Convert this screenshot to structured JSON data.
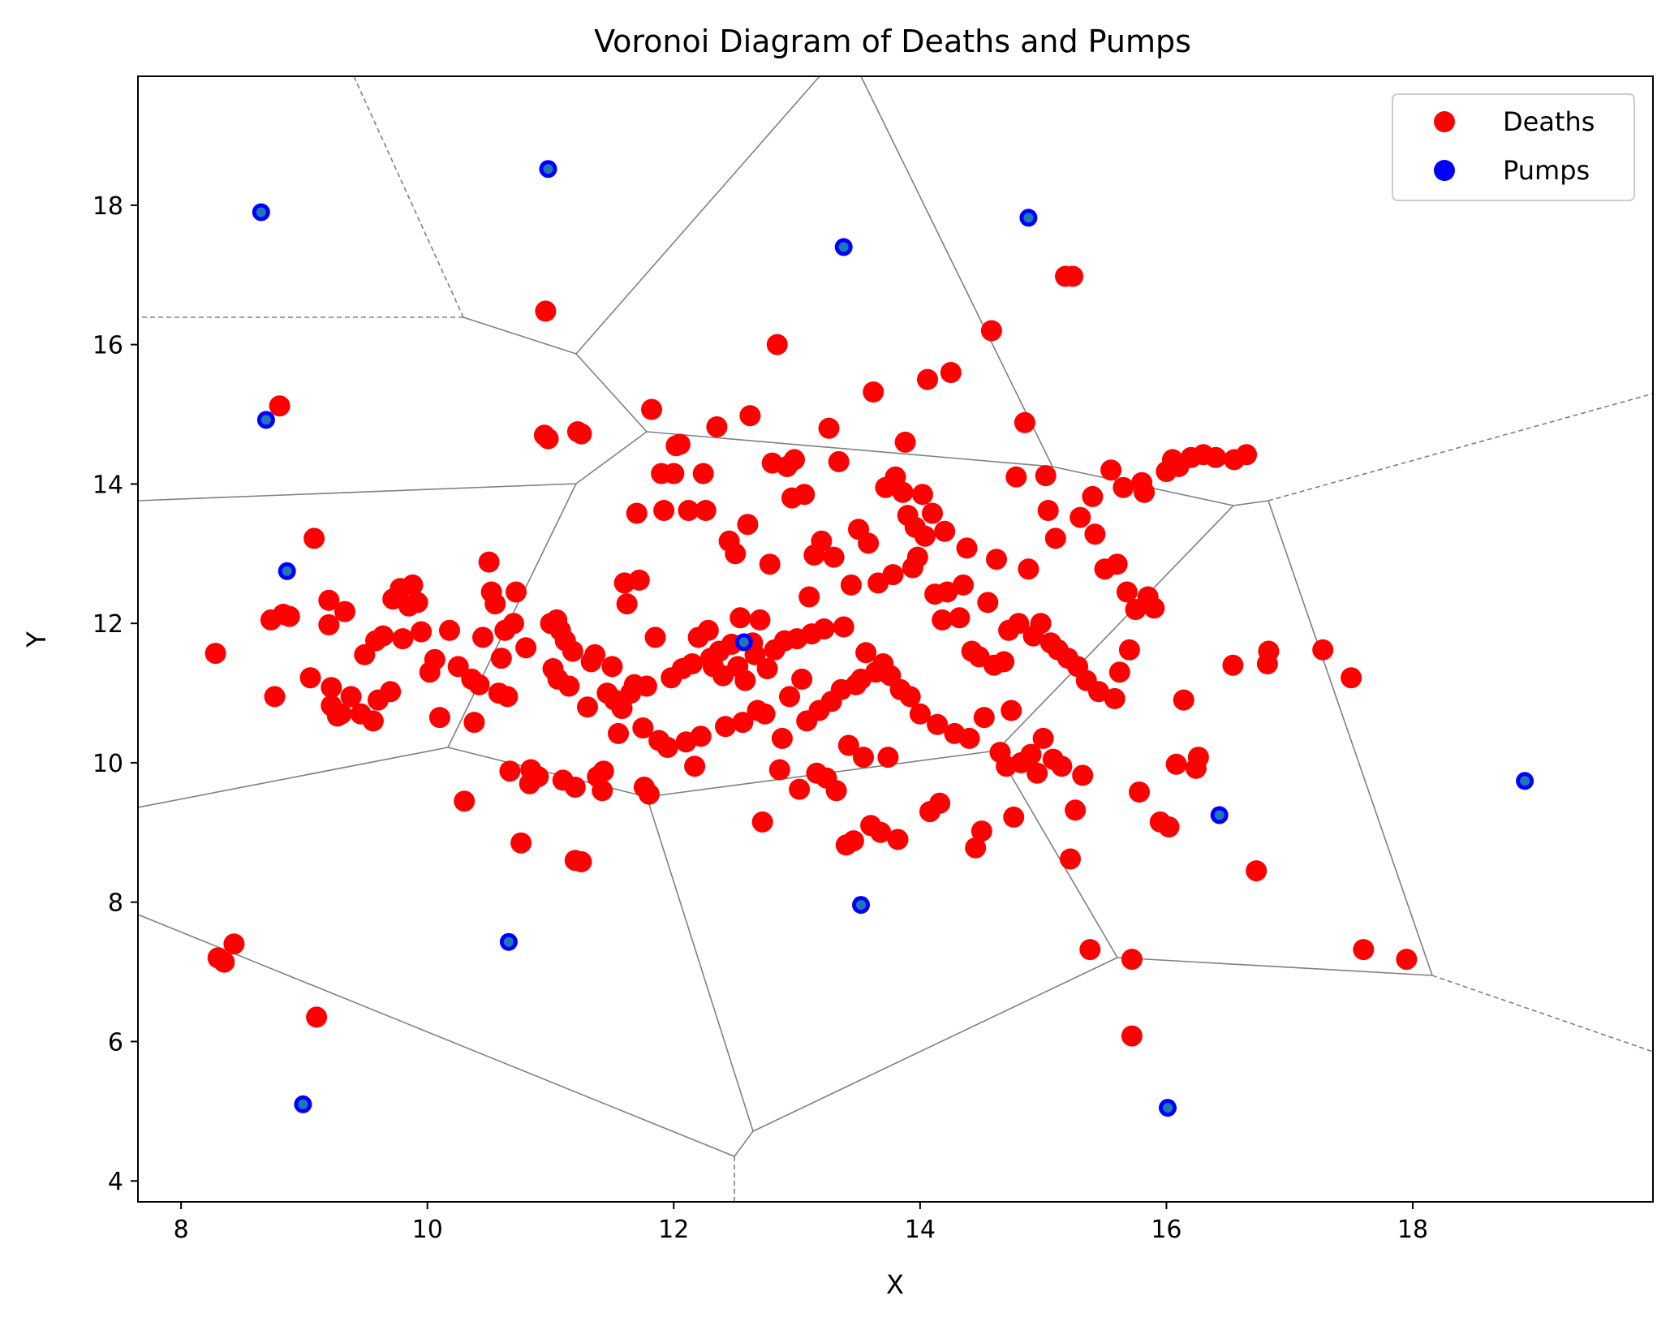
{
  "chart_data": {
    "type": "scatter",
    "title": "Voronoi Diagram of Deaths and Pumps",
    "xlabel": "X",
    "ylabel": "Y",
    "xlim": [
      7.65,
      19.95
    ],
    "ylim": [
      3.7,
      19.85
    ],
    "grid": false,
    "legend_position": "top-right",
    "x_ticks": [
      "8",
      "10",
      "12",
      "14",
      "16",
      "18"
    ],
    "y_ticks": [
      "4",
      "6",
      "8",
      "10",
      "12",
      "14",
      "16",
      "18"
    ],
    "series": [
      {
        "name": "Deaths",
        "color": "#ff0000",
        "points": [
          [
            8.28,
            11.57
          ],
          [
            8.3,
            7.2
          ],
          [
            8.35,
            7.14
          ],
          [
            8.43,
            7.4
          ],
          [
            8.73,
            12.05
          ],
          [
            8.76,
            10.95
          ],
          [
            8.8,
            15.12
          ],
          [
            8.83,
            12.13
          ],
          [
            8.88,
            12.1
          ],
          [
            9.05,
            11.22
          ],
          [
            9.08,
            13.22
          ],
          [
            9.1,
            6.35
          ],
          [
            9.2,
            12.33
          ],
          [
            9.2,
            11.98
          ],
          [
            9.22,
            11.08
          ],
          [
            9.22,
            10.82
          ],
          [
            9.27,
            10.67
          ],
          [
            9.3,
            10.7
          ],
          [
            9.33,
            12.17
          ],
          [
            9.38,
            10.95
          ],
          [
            9.46,
            10.7
          ],
          [
            9.49,
            11.55
          ],
          [
            9.56,
            10.6
          ],
          [
            9.58,
            11.75
          ],
          [
            9.6,
            10.9
          ],
          [
            9.64,
            11.82
          ],
          [
            9.7,
            11.02
          ],
          [
            9.72,
            12.35
          ],
          [
            9.78,
            12.5
          ],
          [
            9.8,
            11.78
          ],
          [
            9.85,
            12.25
          ],
          [
            9.88,
            12.55
          ],
          [
            9.92,
            12.3
          ],
          [
            9.95,
            11.88
          ],
          [
            10.02,
            11.3
          ],
          [
            10.06,
            11.48
          ],
          [
            10.1,
            10.65
          ],
          [
            10.18,
            11.9
          ],
          [
            10.25,
            11.38
          ],
          [
            10.3,
            9.45
          ],
          [
            10.36,
            11.2
          ],
          [
            10.38,
            10.58
          ],
          [
            10.42,
            11.12
          ],
          [
            10.45,
            11.8
          ],
          [
            10.5,
            12.88
          ],
          [
            10.52,
            12.45
          ],
          [
            10.55,
            12.28
          ],
          [
            10.58,
            11.0
          ],
          [
            10.6,
            11.5
          ],
          [
            10.63,
            11.9
          ],
          [
            10.65,
            10.95
          ],
          [
            10.67,
            9.88
          ],
          [
            10.7,
            12.0
          ],
          [
            10.72,
            12.45
          ],
          [
            10.76,
            8.85
          ],
          [
            10.8,
            11.65
          ],
          [
            10.83,
            9.7
          ],
          [
            10.84,
            9.9
          ],
          [
            10.9,
            9.8
          ],
          [
            10.95,
            14.7
          ],
          [
            10.98,
            14.65
          ],
          [
            10.96,
            16.48
          ],
          [
            11.0,
            12.0
          ],
          [
            11.02,
            11.35
          ],
          [
            11.05,
            12.05
          ],
          [
            11.06,
            11.2
          ],
          [
            11.08,
            11.9
          ],
          [
            11.1,
            9.75
          ],
          [
            11.12,
            11.75
          ],
          [
            11.15,
            11.1
          ],
          [
            11.18,
            11.6
          ],
          [
            11.2,
            9.65
          ],
          [
            11.2,
            8.6
          ],
          [
            11.25,
            8.58
          ],
          [
            11.22,
            14.75
          ],
          [
            11.25,
            14.72
          ],
          [
            11.3,
            10.8
          ],
          [
            11.33,
            11.45
          ],
          [
            11.36,
            11.55
          ],
          [
            11.38,
            9.8
          ],
          [
            11.42,
            9.6
          ],
          [
            11.43,
            9.88
          ],
          [
            11.46,
            11.0
          ],
          [
            11.5,
            11.38
          ],
          [
            11.52,
            10.9
          ],
          [
            11.55,
            10.42
          ],
          [
            11.58,
            10.78
          ],
          [
            11.6,
            12.58
          ],
          [
            11.62,
            12.28
          ],
          [
            11.65,
            11.0
          ],
          [
            11.68,
            11.12
          ],
          [
            11.7,
            13.58
          ],
          [
            11.72,
            12.62
          ],
          [
            11.75,
            10.5
          ],
          [
            11.76,
            9.65
          ],
          [
            11.78,
            11.1
          ],
          [
            11.8,
            9.55
          ],
          [
            11.82,
            15.07
          ],
          [
            11.85,
            11.8
          ],
          [
            11.88,
            10.32
          ],
          [
            11.9,
            14.15
          ],
          [
            11.92,
            13.62
          ],
          [
            11.95,
            10.22
          ],
          [
            11.98,
            11.22
          ],
          [
            12.0,
            14.15
          ],
          [
            12.02,
            14.55
          ],
          [
            12.05,
            14.57
          ],
          [
            12.07,
            11.35
          ],
          [
            12.1,
            10.3
          ],
          [
            12.12,
            13.62
          ],
          [
            12.15,
            11.42
          ],
          [
            12.17,
            9.95
          ],
          [
            12.2,
            11.8
          ],
          [
            12.22,
            10.38
          ],
          [
            12.24,
            14.15
          ],
          [
            12.26,
            13.62
          ],
          [
            12.28,
            11.9
          ],
          [
            12.3,
            11.5
          ],
          [
            12.32,
            11.38
          ],
          [
            12.35,
            14.82
          ],
          [
            12.37,
            11.6
          ],
          [
            12.4,
            11.25
          ],
          [
            12.42,
            10.52
          ],
          [
            12.45,
            13.18
          ],
          [
            12.47,
            11.7
          ],
          [
            12.5,
            13.0
          ],
          [
            12.52,
            11.38
          ],
          [
            12.54,
            12.08
          ],
          [
            12.56,
            10.58
          ],
          [
            12.58,
            11.18
          ],
          [
            12.6,
            13.42
          ],
          [
            12.62,
            14.98
          ],
          [
            12.64,
            11.72
          ],
          [
            12.66,
            11.55
          ],
          [
            12.68,
            10.75
          ],
          [
            12.7,
            12.05
          ],
          [
            12.72,
            9.15
          ],
          [
            12.74,
            10.7
          ],
          [
            12.76,
            11.35
          ],
          [
            12.78,
            12.85
          ],
          [
            12.8,
            14.3
          ],
          [
            12.82,
            11.62
          ],
          [
            12.84,
            16.0
          ],
          [
            12.86,
            9.9
          ],
          [
            12.88,
            10.35
          ],
          [
            12.9,
            11.75
          ],
          [
            12.92,
            14.25
          ],
          [
            12.94,
            10.95
          ],
          [
            12.96,
            13.8
          ],
          [
            12.98,
            14.35
          ],
          [
            13.0,
            11.78
          ],
          [
            13.02,
            9.62
          ],
          [
            13.04,
            11.2
          ],
          [
            13.06,
            13.85
          ],
          [
            13.08,
            10.6
          ],
          [
            13.1,
            12.38
          ],
          [
            13.12,
            11.85
          ],
          [
            13.14,
            12.98
          ],
          [
            13.16,
            9.85
          ],
          [
            13.18,
            10.75
          ],
          [
            13.2,
            13.18
          ],
          [
            13.22,
            11.92
          ],
          [
            13.24,
            9.78
          ],
          [
            13.26,
            14.8
          ],
          [
            13.28,
            10.88
          ],
          [
            13.3,
            12.95
          ],
          [
            13.32,
            9.6
          ],
          [
            13.34,
            14.32
          ],
          [
            13.36,
            11.05
          ],
          [
            13.38,
            11.95
          ],
          [
            13.4,
            8.82
          ],
          [
            13.42,
            10.25
          ],
          [
            13.44,
            12.55
          ],
          [
            13.46,
            8.88
          ],
          [
            13.48,
            11.12
          ],
          [
            13.5,
            13.35
          ],
          [
            13.52,
            11.2
          ],
          [
            13.54,
            10.08
          ],
          [
            13.56,
            11.58
          ],
          [
            13.58,
            13.15
          ],
          [
            13.6,
            9.1
          ],
          [
            13.62,
            15.32
          ],
          [
            13.64,
            11.3
          ],
          [
            13.66,
            12.58
          ],
          [
            13.68,
            9.0
          ],
          [
            13.7,
            11.42
          ],
          [
            13.72,
            13.95
          ],
          [
            13.74,
            10.08
          ],
          [
            13.76,
            11.25
          ],
          [
            13.78,
            12.7
          ],
          [
            13.8,
            14.1
          ],
          [
            13.82,
            8.9
          ],
          [
            13.84,
            11.05
          ],
          [
            13.86,
            13.88
          ],
          [
            13.88,
            14.6
          ],
          [
            13.9,
            13.55
          ],
          [
            13.92,
            10.95
          ],
          [
            13.94,
            12.8
          ],
          [
            13.96,
            13.38
          ],
          [
            13.98,
            12.95
          ],
          [
            14.0,
            10.7
          ],
          [
            14.02,
            13.85
          ],
          [
            14.04,
            13.25
          ],
          [
            14.06,
            15.5
          ],
          [
            14.08,
            9.3
          ],
          [
            14.1,
            13.58
          ],
          [
            14.12,
            12.42
          ],
          [
            14.14,
            10.55
          ],
          [
            14.16,
            9.42
          ],
          [
            14.18,
            12.05
          ],
          [
            14.2,
            13.32
          ],
          [
            14.22,
            12.45
          ],
          [
            14.25,
            15.6
          ],
          [
            14.28,
            10.42
          ],
          [
            14.32,
            12.08
          ],
          [
            14.35,
            12.55
          ],
          [
            14.38,
            13.08
          ],
          [
            14.4,
            10.35
          ],
          [
            14.42,
            11.6
          ],
          [
            14.45,
            8.78
          ],
          [
            14.48,
            11.52
          ],
          [
            14.5,
            9.02
          ],
          [
            14.52,
            10.65
          ],
          [
            14.55,
            12.3
          ],
          [
            14.58,
            16.2
          ],
          [
            14.6,
            11.4
          ],
          [
            14.62,
            12.92
          ],
          [
            14.65,
            10.15
          ],
          [
            14.68,
            11.45
          ],
          [
            14.7,
            9.95
          ],
          [
            14.72,
            11.9
          ],
          [
            14.74,
            10.75
          ],
          [
            14.76,
            9.22
          ],
          [
            14.78,
            14.1
          ],
          [
            14.8,
            12.0
          ],
          [
            14.82,
            10.0
          ],
          [
            14.85,
            14.88
          ],
          [
            14.88,
            12.78
          ],
          [
            14.9,
            10.12
          ],
          [
            14.92,
            11.82
          ],
          [
            14.95,
            9.85
          ],
          [
            14.98,
            12.0
          ],
          [
            15.0,
            10.35
          ],
          [
            15.02,
            14.12
          ],
          [
            15.04,
            13.62
          ],
          [
            15.06,
            11.72
          ],
          [
            15.08,
            10.05
          ],
          [
            15.1,
            13.22
          ],
          [
            15.12,
            11.62
          ],
          [
            15.15,
            9.95
          ],
          [
            15.18,
            16.98
          ],
          [
            15.2,
            11.5
          ],
          [
            15.22,
            8.62
          ],
          [
            15.24,
            16.98
          ],
          [
            15.26,
            9.32
          ],
          [
            15.28,
            11.38
          ],
          [
            15.3,
            13.52
          ],
          [
            15.32,
            9.82
          ],
          [
            15.35,
            11.18
          ],
          [
            15.38,
            7.32
          ],
          [
            15.4,
            13.82
          ],
          [
            15.42,
            13.28
          ],
          [
            15.45,
            11.02
          ],
          [
            15.5,
            12.78
          ],
          [
            15.55,
            14.2
          ],
          [
            15.58,
            10.92
          ],
          [
            15.6,
            12.85
          ],
          [
            15.62,
            11.3
          ],
          [
            15.65,
            13.95
          ],
          [
            15.68,
            12.45
          ],
          [
            15.7,
            11.62
          ],
          [
            15.72,
            6.08
          ],
          [
            15.72,
            7.18
          ],
          [
            15.75,
            12.2
          ],
          [
            15.78,
            9.58
          ],
          [
            15.8,
            14.02
          ],
          [
            15.82,
            13.88
          ],
          [
            15.85,
            12.38
          ],
          [
            15.9,
            12.22
          ],
          [
            15.95,
            9.15
          ],
          [
            16.0,
            14.18
          ],
          [
            16.02,
            9.08
          ],
          [
            16.05,
            14.35
          ],
          [
            16.08,
            9.98
          ],
          [
            16.1,
            14.25
          ],
          [
            16.14,
            10.9
          ],
          [
            16.2,
            14.38
          ],
          [
            16.24,
            9.92
          ],
          [
            16.26,
            10.08
          ],
          [
            16.3,
            14.42
          ],
          [
            16.4,
            14.38
          ],
          [
            16.54,
            11.4
          ],
          [
            16.55,
            14.35
          ],
          [
            16.65,
            14.42
          ],
          [
            16.73,
            8.45
          ],
          [
            16.82,
            11.42
          ],
          [
            16.83,
            11.6
          ],
          [
            17.27,
            11.62
          ],
          [
            17.5,
            11.22
          ],
          [
            17.6,
            7.32
          ],
          [
            17.95,
            7.18
          ]
        ]
      },
      {
        "name": "Pumps",
        "color": "#0000ff",
        "points": [
          [
            8.65,
            17.9
          ],
          [
            8.69,
            14.92
          ],
          [
            8.86,
            12.75
          ],
          [
            8.99,
            5.1
          ],
          [
            10.66,
            7.43
          ],
          [
            10.98,
            18.52
          ],
          [
            12.57,
            11.73
          ],
          [
            13.38,
            17.4
          ],
          [
            13.52,
            7.96
          ],
          [
            14.88,
            17.82
          ],
          [
            16.01,
            5.05
          ],
          [
            16.43,
            9.25
          ],
          [
            18.91,
            9.74
          ]
        ]
      }
    ]
  }
}
